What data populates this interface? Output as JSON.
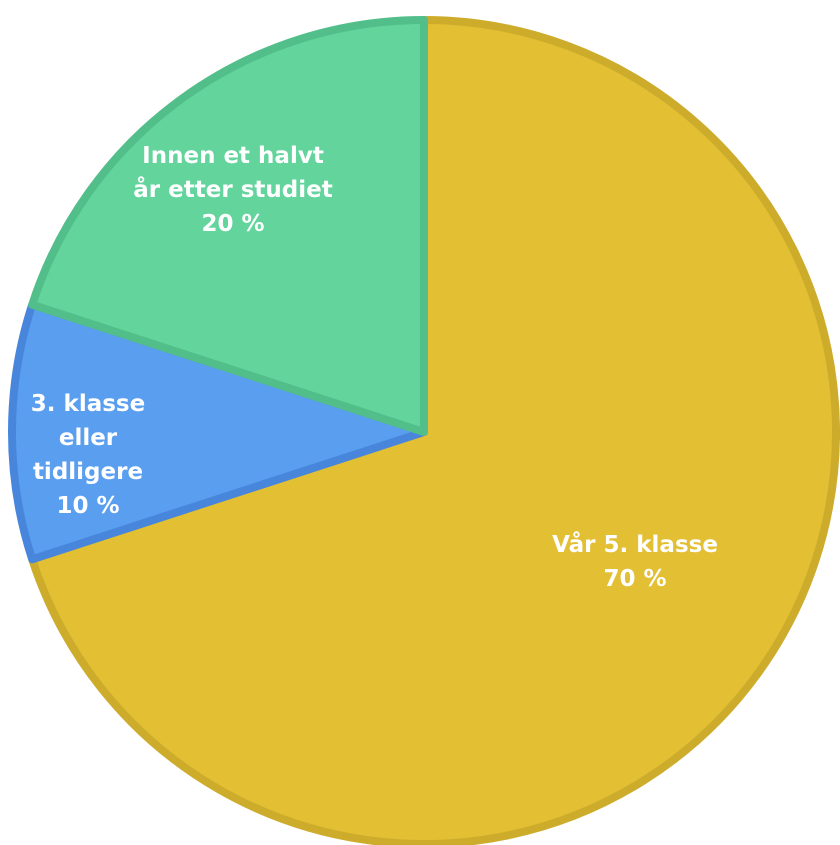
{
  "chart_data": {
    "type": "pie",
    "categories": [
      "Vår 5. klasse",
      "3. klasse eller tidligere",
      "Innen et halvt år etter studiet"
    ],
    "values": [
      70,
      10,
      20
    ],
    "value_labels": [
      "70 %",
      "10 %",
      "20 %"
    ],
    "colors": [
      "#e2bf33",
      "#5a9ef0",
      "#62d49c"
    ]
  }
}
